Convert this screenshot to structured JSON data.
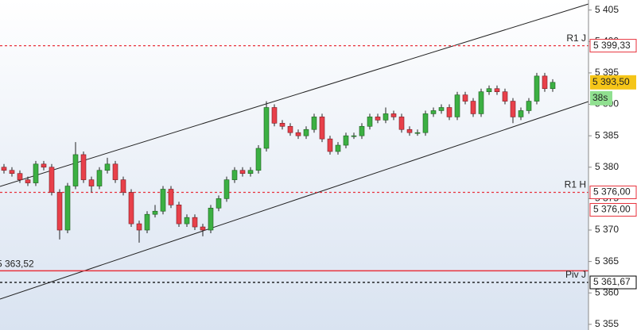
{
  "chart_data": {
    "type": "candlestick",
    "up_color": "#3cb043",
    "down_color": "#e8404a",
    "open": [
      5380,
      5379.5,
      5379,
      5378,
      5377.5,
      5380.5,
      5380,
      5376,
      5370,
      5377,
      5382,
      5378,
      5377,
      5379.5,
      5380.5,
      5378,
      5376,
      5371,
      5370,
      5372.5,
      5373,
      5376.5,
      5374,
      5371,
      5372,
      5370.5,
      5370,
      5373.5,
      5375,
      5378,
      5379.5,
      5379,
      5379.5,
      5383,
      5389.5,
      5387,
      5386.5,
      5385.5,
      5385,
      5386,
      5388,
      5384.5,
      5382.5,
      5383.5,
      5385,
      5385,
      5386.5,
      5388,
      5387.5,
      5388.5,
      5388,
      5386,
      5385.5,
      5385.5,
      5388.5,
      5389,
      5389.5,
      5388,
      5391.5,
      5390.5,
      5388.5,
      5392,
      5392.5,
      5392,
      5390.5,
      5388,
      5389,
      5390.5,
      5394.5,
      5392.5
    ],
    "high": [
      5380.5,
      5380,
      5379.5,
      5378.5,
      5381,
      5381,
      5380.5,
      5376.5,
      5377.5,
      5384,
      5382.5,
      5378.5,
      5380,
      5381.5,
      5381,
      5378.5,
      5376.5,
      5371.5,
      5373,
      5374,
      5377,
      5377,
      5374.5,
      5372.5,
      5372.5,
      5371,
      5374,
      5375.5,
      5378.5,
      5380,
      5380,
      5380,
      5383.5,
      5390.5,
      5390,
      5387.5,
      5387,
      5386,
      5386.5,
      5388.5,
      5388.5,
      5385,
      5384,
      5385.5,
      5385.5,
      5387,
      5388.5,
      5388.5,
      5389.5,
      5389,
      5388.5,
      5386.5,
      5386,
      5389,
      5389.5,
      5390,
      5390,
      5392,
      5392,
      5391,
      5392.5,
      5393,
      5393,
      5392.5,
      5391,
      5389.5,
      5391,
      5395,
      5395,
      5394
    ],
    "low": [
      5379,
      5378.5,
      5377.5,
      5377,
      5377,
      5379.5,
      5375.5,
      5368.5,
      5369.5,
      5376.5,
      5377.5,
      5376,
      5376.5,
      5379,
      5377.5,
      5375.5,
      5370.5,
      5368,
      5369.5,
      5372,
      5372.5,
      5373.5,
      5370.5,
      5370.5,
      5370,
      5369,
      5369.5,
      5373,
      5374.5,
      5377.5,
      5378.5,
      5378.5,
      5379,
      5382.5,
      5386.5,
      5386,
      5385,
      5384.5,
      5384.5,
      5385.5,
      5384,
      5382,
      5382,
      5383,
      5384.5,
      5384.5,
      5386,
      5387,
      5387,
      5387.5,
      5385.5,
      5385,
      5385,
      5385,
      5388,
      5388.5,
      5387.5,
      5387.5,
      5390,
      5388,
      5388,
      5391.5,
      5391.5,
      5390,
      5387,
      5387.5,
      5388.5,
      5390,
      5392,
      5392
    ],
    "close": [
      5379.5,
      5379,
      5378,
      5377.5,
      5380.5,
      5380,
      5376,
      5370,
      5377,
      5382,
      5378,
      5377,
      5379.5,
      5380.5,
      5378,
      5376,
      5371,
      5370,
      5372.5,
      5373,
      5376.5,
      5374,
      5371,
      5372,
      5370.5,
      5370,
      5373.5,
      5375,
      5378,
      5379.5,
      5379,
      5379.5,
      5383,
      5389.5,
      5387,
      5386.5,
      5385.5,
      5385,
      5386,
      5388,
      5384.5,
      5382.5,
      5383.5,
      5385,
      5385,
      5386.5,
      5388,
      5387.5,
      5388.5,
      5388,
      5386,
      5385.5,
      5385.5,
      5388.5,
      5389,
      5389.5,
      5388,
      5391.5,
      5390.5,
      5388.5,
      5392,
      5392.5,
      5392,
      5390.5,
      5388,
      5389,
      5390.5,
      5394.5,
      5392.5,
      5393.5
    ],
    "ylim": [
      5354.1,
      5406.6
    ],
    "yticks": [
      {
        "value": 5355,
        "label": "5 355"
      },
      {
        "value": 5360,
        "label": "5 360"
      },
      {
        "value": 5365,
        "label": "5 365"
      },
      {
        "value": 5370,
        "label": "5 370"
      },
      {
        "value": 5375,
        "label": "5 375"
      },
      {
        "value": 5380,
        "label": "5 380"
      },
      {
        "value": 5385,
        "label": "5 385"
      },
      {
        "value": 5390,
        "label": "5 390"
      },
      {
        "value": 5395,
        "label": "5 395"
      },
      {
        "value": 5400,
        "label": "5 400"
      },
      {
        "value": 5405,
        "label": "5 405"
      }
    ],
    "levels": [
      {
        "name": "R1 J",
        "value": 5399.33,
        "labels": [
          "5 399,33"
        ],
        "color": "#e8323c",
        "style": "dashed",
        "label_side": "axis"
      },
      {
        "name": "R1 H",
        "value": 5376,
        "labels": [
          "5 376,00",
          "5 376,00"
        ],
        "color": "#e8323c",
        "style": "dashed",
        "label_side": "axis"
      },
      {
        "value": 5363.52,
        "labels": [
          "5 363,52"
        ],
        "color": "#e8323c",
        "style": "solid",
        "label_side": "left"
      },
      {
        "name": "Piv J",
        "value": 5361.67,
        "labels": [
          "5 361,67"
        ],
        "color": "#000000",
        "style": "dashed",
        "label_side": "axis"
      }
    ],
    "current": {
      "value": 5393.5,
      "label": "5 393,50",
      "countdown": "38s",
      "color": "#f5c518",
      "countdown_color": "#90e090"
    }
  }
}
